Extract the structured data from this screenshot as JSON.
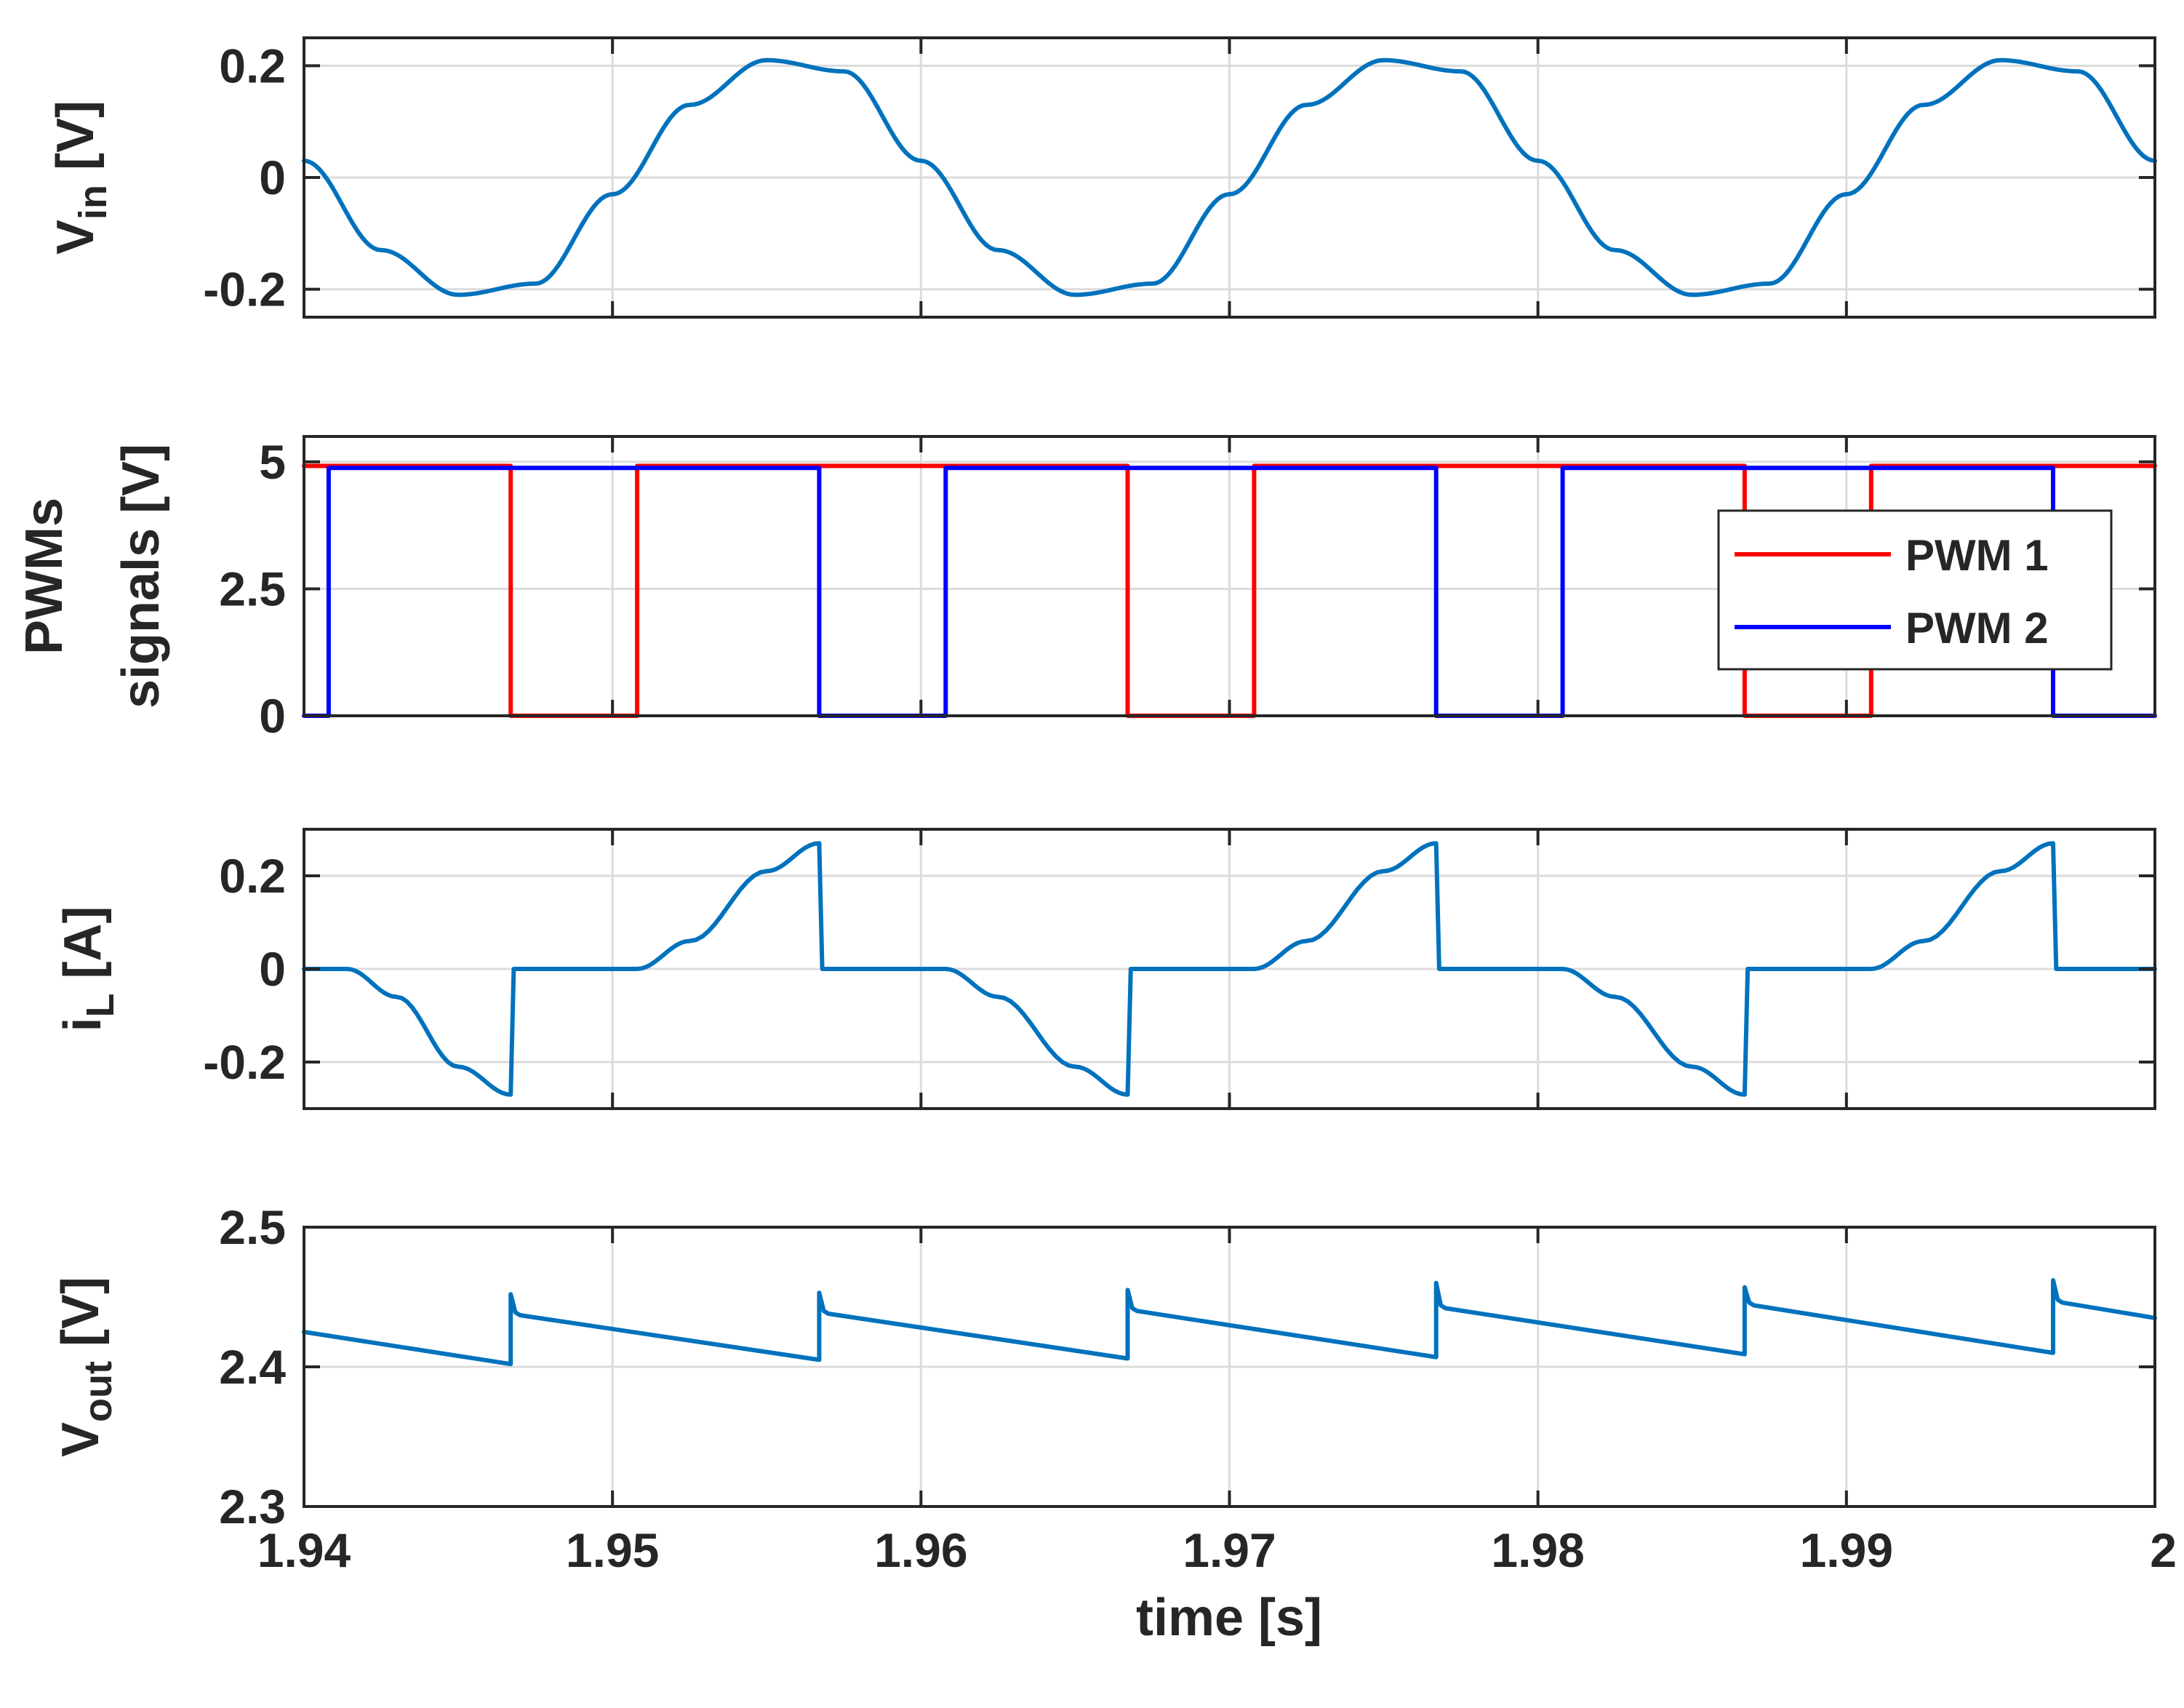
{
  "chart_data": {
    "type": "line",
    "shared_x": {
      "label": "time [s]",
      "lim": [
        1.94,
        2.0
      ],
      "ticks": [
        1.94,
        1.95,
        1.96,
        1.97,
        1.98,
        1.99,
        2.0
      ],
      "tick_labels": [
        "1.94",
        "1.95",
        "1.96",
        "1.97",
        "1.98",
        "1.99",
        "2"
      ]
    },
    "grid": true,
    "panels": [
      {
        "id": "vin",
        "ylabel_main": "V",
        "ylabel_sub": "in",
        "ylabel_unit": "[V]",
        "ylim": [
          -0.25,
          0.25
        ],
        "yticks": [
          -0.2,
          0,
          0.2
        ],
        "ytick_labels": [
          "-0.2",
          "0",
          "0.2"
        ],
        "series": [
          {
            "name": "V_in",
            "color": "#0072BD",
            "x": [
              1.94,
              1.9425,
              1.945,
              1.9475,
              1.95,
              1.9525,
              1.955,
              1.9575,
              1.96,
              1.9625,
              1.965,
              1.9675,
              1.97,
              1.9725,
              1.975,
              1.9775,
              1.98,
              1.9825,
              1.985,
              1.9875,
              1.99,
              1.9925,
              1.995,
              1.9975,
              2.0
            ],
            "y": [
              0.03,
              -0.13,
              -0.21,
              -0.19,
              -0.03,
              0.13,
              0.21,
              0.19,
              0.03,
              -0.13,
              -0.21,
              -0.19,
              -0.03,
              0.13,
              0.21,
              0.19,
              0.03,
              -0.13,
              -0.21,
              -0.19,
              -0.03,
              0.13,
              0.21,
              0.19,
              0.03
            ]
          }
        ]
      },
      {
        "id": "pwm",
        "ylabel_line1": "PWMs",
        "ylabel_line2": "signals  [V]",
        "ylim": [
          0,
          5.5
        ],
        "yticks": [
          0,
          2.5,
          5
        ],
        "ytick_labels": [
          "0",
          "2.5",
          "5"
        ],
        "legend": {
          "location": "right",
          "entries": [
            "PWM 1",
            "PWM 2"
          ]
        },
        "series": [
          {
            "name": "PWM 1",
            "color": "#FF0000",
            "x": [
              1.94,
              1.9467,
              1.9467,
              1.9508,
              1.9508,
              1.9667,
              1.9667,
              1.9708,
              1.9708,
              1.9867,
              1.9867,
              1.9908,
              1.9908,
              2.0
            ],
            "y": [
              4.92,
              4.92,
              0,
              0,
              4.92,
              4.92,
              0,
              0,
              4.92,
              4.92,
              0,
              0,
              4.92,
              4.92
            ]
          },
          {
            "name": "PWM 2",
            "color": "#0000FF",
            "x": [
              1.94,
              1.9408,
              1.9408,
              1.9567,
              1.9567,
              1.9608,
              1.9608,
              1.9767,
              1.9767,
              1.9808,
              1.9808,
              1.9967,
              1.9967,
              2.0
            ],
            "y": [
              0,
              0,
              4.88,
              4.88,
              0,
              0,
              4.88,
              4.88,
              0,
              0,
              4.88,
              4.88,
              0,
              0
            ]
          }
        ]
      },
      {
        "id": "il",
        "ylabel_main": "i",
        "ylabel_sub": "L",
        "ylabel_unit": "[A]",
        "ylim": [
          -0.3,
          0.3
        ],
        "yticks": [
          -0.2,
          0,
          0.2
        ],
        "ytick_labels": [
          "-0.2",
          "0",
          "0.2"
        ],
        "series": [
          {
            "name": "i_L",
            "color": "#0072BD",
            "x": [
              1.94,
              1.9414,
              1.943,
              1.945,
              1.9467,
              1.9467,
              1.9468,
              1.9508,
              1.9525,
              1.955,
              1.9567,
              1.9567,
              1.9568,
              1.9608,
              1.9625,
              1.965,
              1.9667,
              1.9667,
              1.9668,
              1.9708,
              1.9725,
              1.975,
              1.9767,
              1.9767,
              1.9768,
              1.9808,
              1.9825,
              1.985,
              1.9867,
              1.9867,
              1.9868,
              1.9908,
              1.9925,
              1.995,
              1.9967,
              1.9967,
              1.9968,
              2.0
            ],
            "y": [
              0,
              0,
              -0.06,
              -0.21,
              -0.27,
              -0.27,
              0,
              0,
              0.06,
              0.21,
              0.27,
              0.27,
              0,
              0,
              -0.06,
              -0.21,
              -0.27,
              -0.27,
              0,
              0,
              0.06,
              0.21,
              0.27,
              0.27,
              0,
              0,
              -0.06,
              -0.21,
              -0.27,
              -0.27,
              0,
              0,
              0.06,
              0.21,
              0.27,
              0.27,
              0,
              0
            ]
          }
        ]
      },
      {
        "id": "vout",
        "ylabel_main": "V",
        "ylabel_sub": "out",
        "ylabel_unit": "[V]",
        "ylim": [
          2.3,
          2.5
        ],
        "yticks": [
          2.3,
          2.4,
          2.5
        ],
        "ytick_labels": [
          "2.3",
          "2.4",
          "2.5"
        ],
        "series": [
          {
            "name": "V_out",
            "color": "#0072BD",
            "x": [
              1.94,
              1.9467,
              1.9467,
              1.94685,
              1.947,
              1.9567,
              1.9567,
              1.95685,
              1.957,
              1.9667,
              1.9667,
              1.96685,
              1.967,
              1.9767,
              1.9767,
              1.97685,
              1.977,
              1.9867,
              1.9867,
              1.98685,
              1.987,
              1.9967,
              1.9967,
              1.99685,
              1.997,
              2.0
            ],
            "y": [
              2.425,
              2.402,
              2.452,
              2.439,
              2.437,
              2.405,
              2.453,
              2.44,
              2.438,
              2.406,
              2.455,
              2.442,
              2.44,
              2.407,
              2.46,
              2.444,
              2.442,
              2.409,
              2.457,
              2.446,
              2.444,
              2.41,
              2.462,
              2.448,
              2.446,
              2.435
            ]
          }
        ]
      }
    ]
  }
}
